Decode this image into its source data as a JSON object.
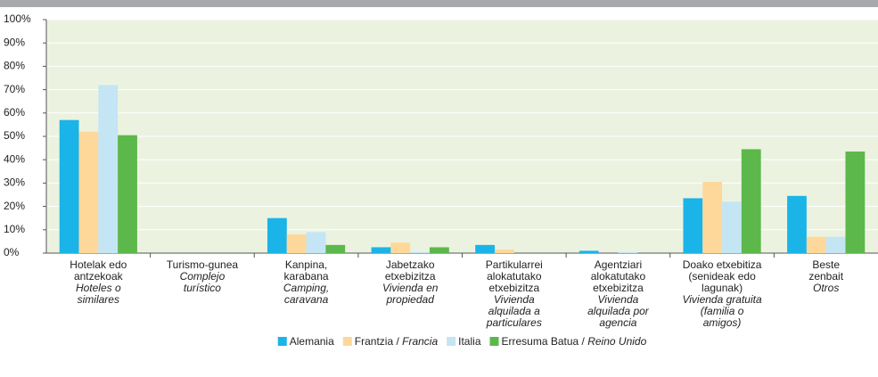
{
  "chart_data": {
    "type": "bar",
    "categories": [
      {
        "lines": [
          "Hotelak edo",
          "antzekoak"
        ],
        "italic": [
          "Hoteles o",
          "similares"
        ]
      },
      {
        "lines": [
          "Turismo-gunea"
        ],
        "italic": [
          "Complejo",
          "turístico"
        ]
      },
      {
        "lines": [
          "Kanpina,",
          "karabana"
        ],
        "italic": [
          "Camping,",
          "caravana"
        ]
      },
      {
        "lines": [
          "Jabetzako",
          "etxebizitza"
        ],
        "italic": [
          "Vivienda en",
          "propiedad"
        ]
      },
      {
        "lines": [
          "Partikularrei",
          "alokatutako",
          "etxebizitza"
        ],
        "italic": [
          "Vivienda",
          "alquilada a",
          "particulares"
        ]
      },
      {
        "lines": [
          "Agentziari",
          "alokatutako",
          "etxebizitza"
        ],
        "italic": [
          "Vivienda",
          "alquilada por",
          "agencia"
        ]
      },
      {
        "lines": [
          "Doako etxebitiza",
          "(senideak edo",
          "lagunak)"
        ],
        "italic": [
          "Vivienda gratuita",
          "(familia o",
          "amigos)"
        ]
      },
      {
        "lines": [
          "Beste",
          "zenbait"
        ],
        "italic": [
          "Otros"
        ]
      }
    ],
    "series": [
      {
        "name": "Alemania",
        "color": "#1ab4e8",
        "values": [
          57,
          0,
          15,
          2.5,
          3.5,
          1,
          23.5,
          24.5
        ]
      },
      {
        "name": "Frantzia /",
        "name_italic": "Francia",
        "color": "#fdd89a",
        "values": [
          52,
          0,
          8,
          4.5,
          1.5,
          0,
          30.5,
          7
        ]
      },
      {
        "name": "Italia",
        "color": "#c4e5f4",
        "values": [
          72,
          0,
          9,
          0.5,
          0,
          0.5,
          22,
          7
        ]
      },
      {
        "name": "Erresuma Batua /",
        "name_italic": "Reino Unido",
        "color": "#5cb84a",
        "values": [
          50.5,
          0,
          3.5,
          2.5,
          0,
          0,
          44.5,
          43.5
        ]
      }
    ],
    "ylim": [
      0,
      100
    ],
    "yticks": [
      {
        "value": 0,
        "label": "0%"
      },
      {
        "value": 10,
        "label": "10%"
      },
      {
        "value": 20,
        "label": "20%"
      },
      {
        "value": 30,
        "label": "30%"
      },
      {
        "value": 40,
        "label": "40%"
      },
      {
        "value": 50,
        "label": "50%"
      },
      {
        "value": 60,
        "label": "60%"
      },
      {
        "value": 70,
        "label": "70%"
      },
      {
        "value": 80,
        "label": "80%"
      },
      {
        "value": 90,
        "label": "90%"
      },
      {
        "value": 100,
        "label": "100%"
      }
    ],
    "grid": true
  }
}
